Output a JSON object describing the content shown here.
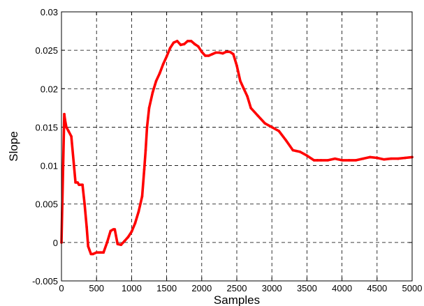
{
  "chart_data": {
    "type": "line",
    "title": "",
    "xlabel": "Samples",
    "ylabel": "Slope",
    "xlim": [
      0,
      5000
    ],
    "ylim": [
      -0.005,
      0.03
    ],
    "xticks": [
      0,
      500,
      1000,
      1500,
      2000,
      2500,
      3000,
      3500,
      4000,
      4500,
      5000
    ],
    "xtick_labels": [
      "0",
      "500",
      "1000",
      "1500",
      "2000",
      "2500",
      "3000",
      "3500",
      "4000",
      "4500",
      "5000"
    ],
    "yticks": [
      -0.005,
      0,
      0.005,
      0.01,
      0.015,
      0.02,
      0.025,
      0.03
    ],
    "ytick_labels": [
      "-0.005",
      "0",
      "0.005",
      "0.01",
      "0.015",
      "0.02",
      "0.025",
      "0.03"
    ],
    "grid": true,
    "line_color": "#ff0000",
    "series": [
      {
        "name": "",
        "x": [
          0,
          40,
          50,
          70,
          100,
          140,
          200,
          230,
          250,
          300,
          330,
          360,
          380,
          400,
          420,
          450,
          500,
          560,
          600,
          650,
          700,
          740,
          760,
          800,
          850,
          900,
          950,
          1000,
          1050,
          1100,
          1150,
          1180,
          1200,
          1220,
          1250,
          1300,
          1350,
          1400,
          1450,
          1500,
          1550,
          1600,
          1650,
          1700,
          1750,
          1800,
          1850,
          1900,
          1950,
          2000,
          2050,
          2100,
          2150,
          2200,
          2250,
          2300,
          2350,
          2400,
          2450,
          2500,
          2550,
          2600,
          2650,
          2700,
          2800,
          2900,
          3000,
          3100,
          3200,
          3300,
          3350,
          3400,
          3500,
          3600,
          3650,
          3700,
          3800,
          3900,
          3950,
          4000,
          4100,
          4200,
          4300,
          4400,
          4500,
          4600,
          4700,
          4800,
          4900,
          5000
        ],
        "y": [
          0,
          0.0167,
          0.016,
          0.015,
          0.0145,
          0.0138,
          0.0078,
          0.0078,
          0.0075,
          0.0075,
          0.005,
          0.002,
          -0.0005,
          -0.001,
          -0.0015,
          -0.0015,
          -0.0013,
          -0.0013,
          -0.0013,
          0,
          0.0015,
          0.0017,
          0.0017,
          -0.0002,
          -0.0003,
          0.0002,
          0.0007,
          0.0014,
          0.0025,
          0.004,
          0.006,
          0.0095,
          0.012,
          0.015,
          0.0175,
          0.0195,
          0.021,
          0.022,
          0.0232,
          0.0242,
          0.0253,
          0.026,
          0.0262,
          0.0257,
          0.0258,
          0.0262,
          0.0262,
          0.0258,
          0.0255,
          0.0248,
          0.0243,
          0.0243,
          0.0245,
          0.0247,
          0.0247,
          0.0246,
          0.0248,
          0.0248,
          0.0245,
          0.023,
          0.021,
          0.02,
          0.019,
          0.0175,
          0.0165,
          0.0155,
          0.015,
          0.0145,
          0.0133,
          0.012,
          0.0119,
          0.0118,
          0.0113,
          0.0107,
          0.0107,
          0.0107,
          0.0107,
          0.0109,
          0.0108,
          0.0107,
          0.0107,
          0.0107,
          0.0109,
          0.0111,
          0.011,
          0.0108,
          0.0109,
          0.0109,
          0.011,
          0.0111
        ]
      }
    ]
  }
}
